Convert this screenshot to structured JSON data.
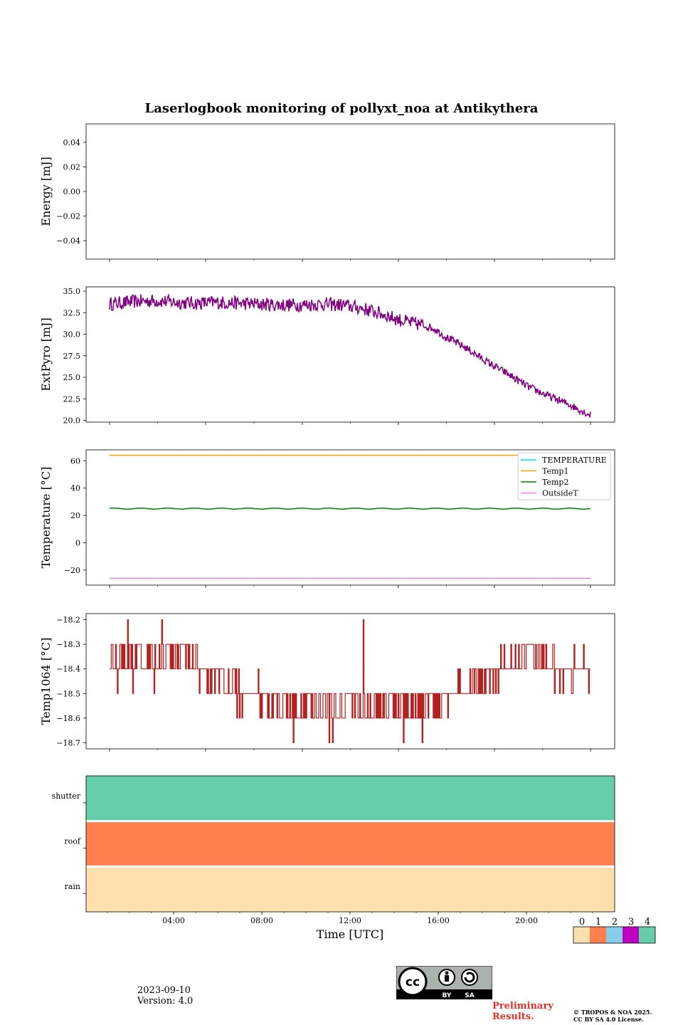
{
  "title": "Laserlogbook monitoring of pollyxt_noa at Antikythera",
  "footer": {
    "date": "2023-09-10",
    "version": "Version: 4.0",
    "preliminary": "Preliminary Results.",
    "copyright_line1": "© TROPOS & NOA 2025.",
    "copyright_line2": "CC BY SA 4.0 License.",
    "license_badge": {
      "by": "BY",
      "sa": "SA"
    }
  },
  "colorbar": {
    "labels": [
      "0",
      "1",
      "2",
      "3",
      "4"
    ],
    "colors": [
      "#fde0ae",
      "#ff7f4f",
      "#87ceeb",
      "#c000c0",
      "#66cdaa"
    ]
  },
  "chart_data": [
    {
      "type": "line",
      "ylabel": "Energy [mJ]",
      "ylim": [
        -0.055,
        0.055
      ],
      "yticks": [
        "0.04",
        "0.02",
        "0.00",
        "−0.02",
        "−0.04"
      ],
      "series": []
    },
    {
      "type": "line",
      "ylabel": "ExtPyro [mJ]",
      "ylim": [
        19.8,
        35.5
      ],
      "yticks": [
        "35.0",
        "32.5",
        "30.0",
        "27.5",
        "25.0",
        "22.5",
        "20.0"
      ],
      "color": "#800080",
      "series": [
        {
          "x_hours": [
            0.8,
            2,
            3,
            4,
            5,
            6,
            7,
            8,
            9,
            10,
            11,
            12,
            13,
            14,
            15,
            16,
            16.5,
            17,
            18,
            19,
            20,
            21,
            22,
            23,
            24
          ],
          "values": [
            33.5,
            33.8,
            33.9,
            33.7,
            33.6,
            33.7,
            33.6,
            33.5,
            33.4,
            33.4,
            33.5,
            33.4,
            33.0,
            32.3,
            31.5,
            31.0,
            30.6,
            29.7,
            28.4,
            26.8,
            25.4,
            23.9,
            22.8,
            21.8,
            20.6
          ]
        }
      ]
    },
    {
      "type": "line",
      "ylabel": "Temperature [°C]",
      "ylim": [
        -31,
        68
      ],
      "yticks": [
        "60",
        "40",
        "20",
        "0",
        "−20"
      ],
      "legend": "top-right",
      "series": [
        {
          "name": "TEMPERATURE",
          "color": "#00e5e5",
          "values": []
        },
        {
          "name": "Temp1",
          "color": "#ffa500",
          "x_hours": [
            0.8,
            24
          ],
          "values": [
            64,
            64
          ]
        },
        {
          "name": "Temp2",
          "color": "#008000",
          "x_hours": [
            0.8,
            24
          ],
          "values": [
            25,
            25
          ]
        },
        {
          "name": "OutsideT",
          "color": "#ee82ee",
          "x_hours": [
            0.8,
            24
          ],
          "values": [
            -26,
            -26
          ]
        }
      ]
    },
    {
      "type": "line",
      "ylabel": "Temp1064 [°C]",
      "ylim": [
        -18.725,
        -18.175
      ],
      "yticks": [
        "−18.2",
        "−18.3",
        "−18.4",
        "−18.5",
        "−18.6",
        "−18.7"
      ],
      "color": "#b22222",
      "series": [
        {
          "x_hours": [
            0.8,
            1.5,
            2.5,
            3.5,
            4.5,
            5.2,
            5.5,
            6,
            7,
            8,
            9,
            10,
            11,
            12,
            13,
            14,
            15,
            16,
            17,
            18,
            18.9,
            19.5,
            20,
            21,
            22,
            23,
            24
          ],
          "values": [
            -18.4,
            -18.35,
            -18.35,
            -18.35,
            -18.32,
            -18.35,
            -18.45,
            -18.45,
            -18.5,
            -18.5,
            -18.55,
            -18.55,
            -18.55,
            -18.55,
            -18.55,
            -18.55,
            -18.55,
            -18.55,
            -18.5,
            -18.5,
            -18.45,
            -18.4,
            -18.4,
            -18.35,
            -18.4,
            -18.4,
            -18.4
          ]
        }
      ]
    },
    {
      "type": "heatmap",
      "xlabel": "Time [UTC]",
      "xticks": [
        "04:00",
        "08:00",
        "12:00",
        "16:00",
        "20:00"
      ],
      "rows": [
        {
          "label": "shutter",
          "status": 4
        },
        {
          "label": "roof",
          "status": 1
        },
        {
          "label": "rain",
          "status": 0
        }
      ]
    }
  ]
}
